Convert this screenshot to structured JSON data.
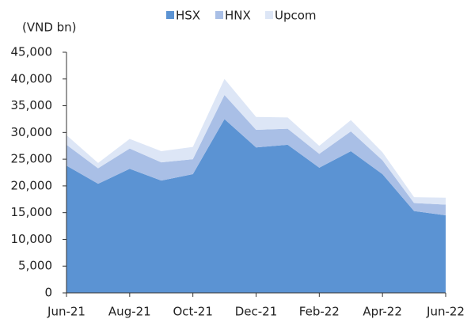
{
  "chart_data": {
    "type": "stacked_area",
    "y_label": "(VND bn)",
    "categories": [
      "Jun-21",
      null,
      "Aug-21",
      null,
      "Oct-21",
      null,
      "Dec-21",
      null,
      "Feb-22",
      null,
      "Apr-22",
      null,
      "Jun-22"
    ],
    "series": [
      {
        "name": "HSX",
        "color": "#5b93d3",
        "values": [
          23800,
          20400,
          23200,
          21000,
          22200,
          32500,
          27200,
          27700,
          23400,
          26500,
          22200,
          15300,
          14500
        ]
      },
      {
        "name": "HNX",
        "color": "#a9bfe6",
        "values": [
          3900,
          2900,
          3800,
          3400,
          2800,
          4500,
          3300,
          3000,
          2600,
          3700,
          2600,
          1500,
          2000
        ]
      },
      {
        "name": "Upcom",
        "color": "#dde6f6",
        "values": [
          1800,
          1000,
          1800,
          2100,
          2300,
          3000,
          2400,
          2100,
          1500,
          2100,
          1500,
          1100,
          1300
        ]
      }
    ],
    "ylim": [
      0,
      45000
    ],
    "yticks": [
      0,
      {
        "value": 5000,
        "label": "5,000"
      },
      {
        "value": 10000,
        "label": "10,000"
      },
      {
        "value": 15000,
        "label": "15,000"
      },
      {
        "value": 20000,
        "label": "20,000"
      },
      {
        "value": 25000,
        "label": "25,000"
      },
      {
        "value": 30000,
        "label": "30,000"
      },
      {
        "value": 35000,
        "label": "35,000"
      },
      {
        "value": 40000,
        "label": "40,000"
      },
      {
        "value": 45000,
        "label": "45,000"
      }
    ],
    "legend": "top"
  }
}
